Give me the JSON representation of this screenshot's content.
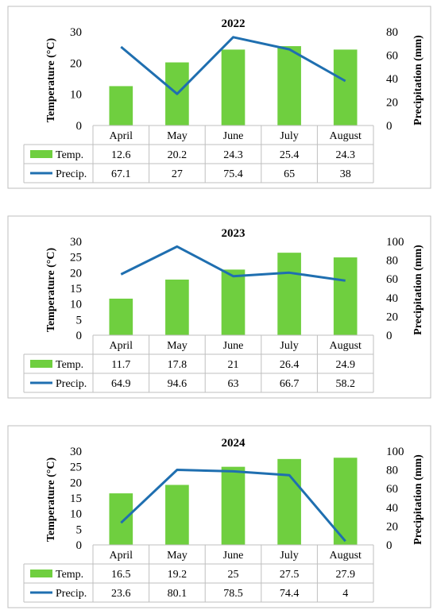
{
  "chart_data": [
    {
      "type": "bar",
      "title": "2022",
      "categories": [
        "April",
        "May",
        "June",
        "July",
        "August"
      ],
      "ylabel": "Temperature (°C)",
      "y2label": "Precipitation (mm)",
      "ylim": [
        0,
        30
      ],
      "yticks": [
        0,
        10,
        20,
        30
      ],
      "y2lim": [
        0,
        80
      ],
      "y2ticks": [
        0,
        20,
        40,
        60,
        80
      ],
      "series": [
        {
          "name": "Temp.",
          "type": "bar",
          "axis": "left",
          "color": "#6fcf3f",
          "values": [
            12.6,
            20.2,
            24.3,
            25.4,
            24.3
          ],
          "labels": [
            "12.6",
            "20.2",
            "24.3",
            "25.4",
            "24.3"
          ]
        },
        {
          "name": "Precip.",
          "type": "line",
          "axis": "right",
          "color": "#1f6fb0",
          "values": [
            67.1,
            27,
            75.4,
            65,
            38
          ],
          "labels": [
            "67.1",
            "27",
            "75.4",
            "65",
            "38"
          ]
        }
      ]
    },
    {
      "type": "bar",
      "title": "2023",
      "categories": [
        "April",
        "May",
        "June",
        "July",
        "August"
      ],
      "ylabel": "Temperature (°C)",
      "y2label": "Precipitation (mm)",
      "ylim": [
        0,
        30
      ],
      "yticks": [
        0,
        5,
        10,
        15,
        20,
        25,
        30
      ],
      "y2lim": [
        0,
        100
      ],
      "y2ticks": [
        0,
        20,
        40,
        60,
        80,
        100
      ],
      "series": [
        {
          "name": "Temp.",
          "type": "bar",
          "axis": "left",
          "color": "#6fcf3f",
          "values": [
            11.7,
            17.8,
            21,
            26.4,
            24.9
          ],
          "labels": [
            "11.7",
            "17.8",
            "21",
            "26.4",
            "24.9"
          ]
        },
        {
          "name": "Precip.",
          "type": "line",
          "axis": "right",
          "color": "#1f6fb0",
          "values": [
            64.9,
            94.6,
            63,
            66.7,
            58.2
          ],
          "labels": [
            "64.9",
            "94.6",
            "63",
            "66.7",
            "58.2"
          ]
        }
      ]
    },
    {
      "type": "bar",
      "title": "2024",
      "categories": [
        "April",
        "May",
        "June",
        "July",
        "August"
      ],
      "ylabel": "Temperature (°C)",
      "y2label": "Precipitation (mm)",
      "ylim": [
        0,
        30
      ],
      "yticks": [
        0,
        5,
        10,
        15,
        20,
        25,
        30
      ],
      "y2lim": [
        0,
        100
      ],
      "y2ticks": [
        0,
        20,
        40,
        60,
        80,
        100
      ],
      "series": [
        {
          "name": "Temp.",
          "type": "bar",
          "axis": "left",
          "color": "#6fcf3f",
          "values": [
            16.5,
            19.2,
            25,
            27.5,
            27.9
          ],
          "labels": [
            "16.5",
            "19.2",
            "25",
            "27.5",
            "27.9"
          ]
        },
        {
          "name": "Precip.",
          "type": "line",
          "axis": "right",
          "color": "#1f6fb0",
          "values": [
            23.6,
            80.1,
            78.5,
            74.4,
            4
          ],
          "labels": [
            "23.6",
            "80.1",
            "78.5",
            "74.4",
            "4"
          ]
        }
      ]
    }
  ]
}
